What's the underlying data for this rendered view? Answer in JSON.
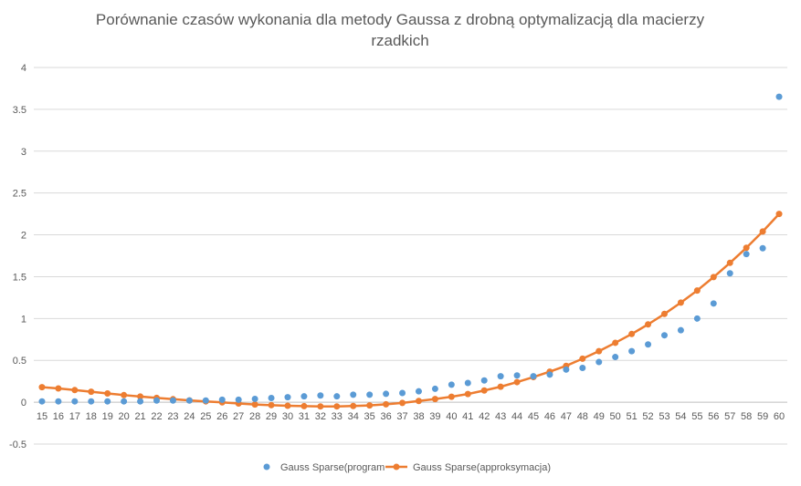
{
  "chart_data": {
    "type": "scatter",
    "title": "Porównanie czasów wykonania dla metody Gaussa z drobną optymalizacją dla macierzy rzadkich",
    "title_lines": [
      "Porównanie czasów wykonania dla metody Gaussa z drobną optymalizacją dla macierzy",
      "rzadkich"
    ],
    "xlabel": "",
    "ylabel": "",
    "x": [
      15,
      16,
      17,
      18,
      19,
      20,
      21,
      22,
      23,
      24,
      25,
      26,
      27,
      28,
      29,
      30,
      31,
      32,
      33,
      34,
      35,
      36,
      37,
      38,
      39,
      40,
      41,
      42,
      43,
      44,
      45,
      46,
      47,
      48,
      49,
      50,
      51,
      52,
      53,
      54,
      55,
      56,
      57,
      58,
      59,
      60
    ],
    "x_tick_labels": [
      "15",
      "16",
      "17",
      "18",
      "19",
      "20",
      "21",
      "22",
      "23",
      "24",
      "25",
      "26",
      "27",
      "28",
      "29",
      "30",
      "31",
      "32",
      "33",
      "34",
      "35",
      "36",
      "37",
      "38",
      "39",
      "40",
      "41",
      "42",
      "43",
      "44",
      "45",
      "46",
      "47",
      "48",
      "49",
      "50",
      "51",
      "52",
      "53",
      "54",
      "55",
      "56",
      "57",
      "58",
      "59",
      "60"
    ],
    "y_ticks": [
      -0.5,
      0,
      0.5,
      1,
      1.5,
      2,
      2.5,
      3,
      3.5,
      4
    ],
    "y_tick_labels": [
      "-0.5",
      "0",
      "0.5",
      "1",
      "1.5",
      "2",
      "2.5",
      "3",
      "3.5",
      "4"
    ],
    "ylim": [
      -0.5,
      4
    ],
    "grid": true,
    "legend_position": "bottom",
    "series": [
      {
        "name": "Gauss Sparse(program",
        "kind": "scatter",
        "color": "#5B9BD5",
        "values": [
          0.01,
          0.01,
          0.01,
          0.01,
          0.01,
          0.01,
          0.01,
          0.02,
          0.02,
          0.02,
          0.02,
          0.03,
          0.03,
          0.04,
          0.05,
          0.06,
          0.07,
          0.08,
          0.07,
          0.09,
          0.09,
          0.1,
          0.11,
          0.13,
          0.16,
          0.21,
          0.23,
          0.26,
          0.31,
          0.32,
          0.31,
          0.33,
          0.39,
          0.41,
          0.48,
          0.54,
          0.61,
          0.69,
          0.8,
          0.86,
          1.0,
          1.18,
          1.54,
          1.77,
          1.84,
          3.65
        ]
      },
      {
        "name": "Gauss Sparse(approksymacja)",
        "kind": "line",
        "color": "#ED7D31",
        "values": [
          0.18,
          0.165,
          0.145,
          0.125,
          0.105,
          0.085,
          0.068,
          0.052,
          0.036,
          0.022,
          0.01,
          -0.002,
          -0.015,
          -0.027,
          -0.035,
          -0.042,
          -0.047,
          -0.05,
          -0.05,
          -0.045,
          -0.038,
          -0.025,
          -0.008,
          0.015,
          0.038,
          0.065,
          0.098,
          0.14,
          0.185,
          0.24,
          0.3,
          0.365,
          0.435,
          0.52,
          0.61,
          0.71,
          0.815,
          0.93,
          1.055,
          1.19,
          1.335,
          1.495,
          1.665,
          1.845,
          2.04,
          2.25
        ]
      }
    ]
  }
}
